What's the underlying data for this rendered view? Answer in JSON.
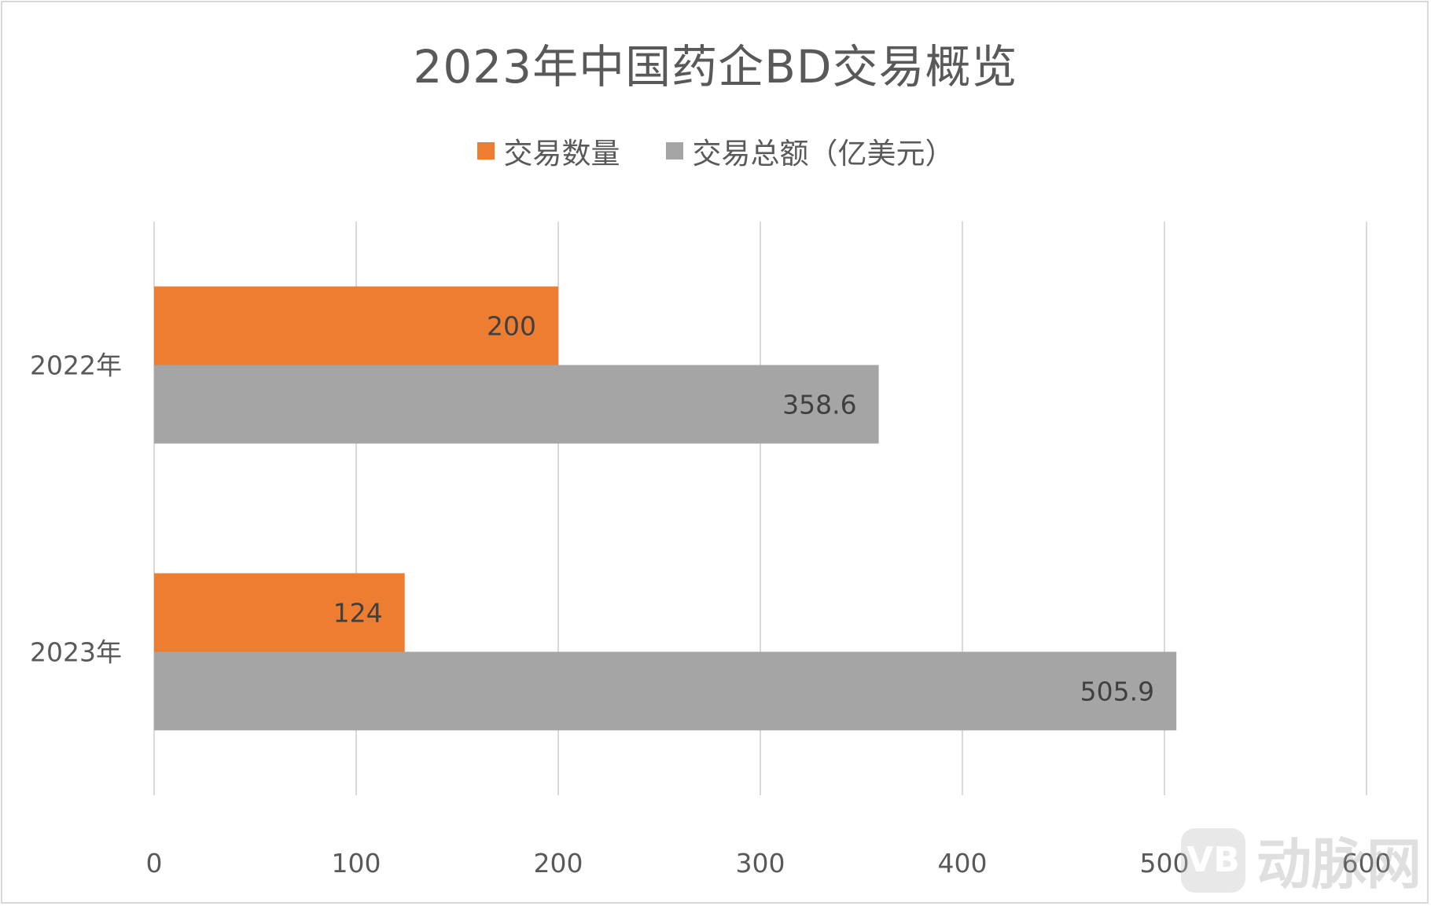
{
  "chart_data": {
    "type": "bar",
    "orientation": "horizontal",
    "title": "2023年中国药企BD交易概览",
    "categories": [
      "2022年",
      "2023年"
    ],
    "series": [
      {
        "name": "交易数量",
        "color": "#ed7d31",
        "values": [
          200,
          124
        ],
        "labels": [
          "200",
          "124"
        ]
      },
      {
        "name": "交易总额（亿美元）",
        "color": "#a5a5a5",
        "values": [
          358.6,
          505.9
        ],
        "labels": [
          "358.6",
          "505.9"
        ]
      }
    ],
    "xlim": [
      0,
      600
    ],
    "xticks": [
      0,
      100,
      200,
      300,
      400,
      500,
      600
    ],
    "xtick_labels": [
      "0",
      "100",
      "200",
      "300",
      "400",
      "500",
      "600"
    ],
    "grid": true,
    "legend_position": "top"
  },
  "watermark": {
    "badge": "VB",
    "text": "动脉网"
  }
}
